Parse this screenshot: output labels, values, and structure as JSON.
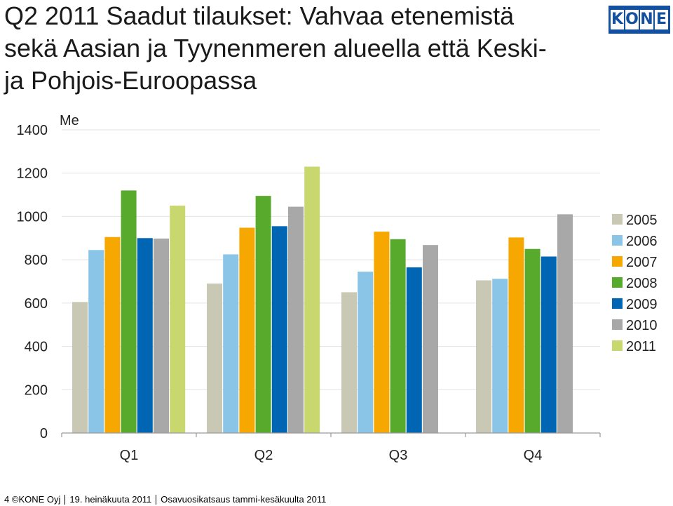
{
  "slide": {
    "title": "Q2 2011 Saadut tilaukset: Vahvaa etenemistä\nsekä Aasian ja Tyynenmeren alueella että Keski-\nja Pohjois-Euroopassa"
  },
  "logo": {
    "letters": [
      "K",
      "O",
      "N",
      "E"
    ],
    "color": "#1450a0"
  },
  "footer": {
    "page": "4",
    "copyright": "©KONE Oyj",
    "date": "19. heinäkuuta 2011",
    "subject": "Osavuosikatsaus tammi-kesäkuulta 2011"
  },
  "chart_data": {
    "type": "bar",
    "title": "",
    "ylabel": "Me",
    "xlabel": "",
    "ylim": [
      0,
      1400
    ],
    "yticks": [
      0,
      200,
      400,
      600,
      800,
      1000,
      1200,
      1400
    ],
    "grid": true,
    "legend_position": "right",
    "categories": [
      "Q1",
      "Q2",
      "Q3",
      "Q4"
    ],
    "series": [
      {
        "name": "2005",
        "color": "#c8c8b4",
        "values": [
          605,
          690,
          650,
          705
        ]
      },
      {
        "name": "2006",
        "color": "#8ac4e6",
        "values": [
          845,
          825,
          745,
          712
        ]
      },
      {
        "name": "2007",
        "color": "#f6a800",
        "values": [
          905,
          948,
          930,
          903
        ]
      },
      {
        "name": "2008",
        "color": "#58aa2c",
        "values": [
          1120,
          1095,
          895,
          850
        ]
      },
      {
        "name": "2009",
        "color": "#0066b3",
        "values": [
          900,
          955,
          765,
          815
        ]
      },
      {
        "name": "2010",
        "color": "#a8a8a8",
        "values": [
          898,
          1045,
          868,
          1010
        ]
      },
      {
        "name": "2011",
        "color": "#c8d86e",
        "values": [
          1050,
          1230,
          null,
          null
        ]
      }
    ]
  }
}
